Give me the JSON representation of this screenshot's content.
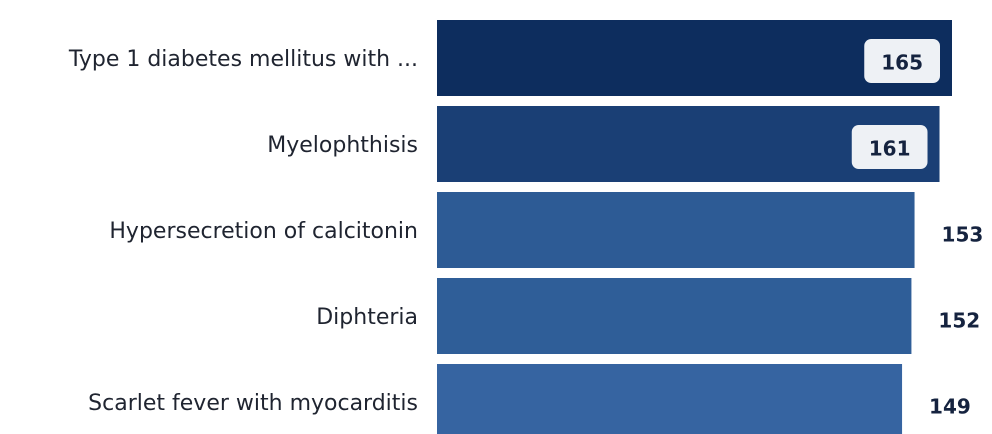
{
  "chart_data": {
    "type": "bar",
    "orientation": "horizontal",
    "categories": [
      "Type 1 diabetes mellitus with ...",
      "Myelophthisis",
      "Hypersecretion of calcitonin",
      "Diphteria",
      "Scarlet fever with myocarditis"
    ],
    "values": [
      165,
      161,
      153,
      152,
      149
    ],
    "colors": [
      "#0d2d5e",
      "#1a3f75",
      "#2d5b95",
      "#2f5e98",
      "#3664a1"
    ]
  }
}
